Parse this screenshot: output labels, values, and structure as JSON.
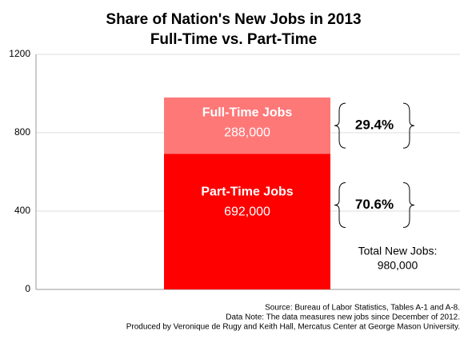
{
  "chart_data": {
    "type": "stacked_bar",
    "title": "Share of Nation's New Jobs in 2013",
    "subtitle": "Full-Time vs. Part-Time",
    "categories": [
      null
    ],
    "series": [
      {
        "name": "Part-Time Jobs",
        "color": "#ff0000",
        "values": [
          692
        ],
        "value_labels": [
          "692,000"
        ],
        "share_labels": [
          "70.6%"
        ]
      },
      {
        "name": "Full-Time Jobs",
        "color": "#ff7878",
        "values": [
          288
        ],
        "value_labels": [
          "288,000"
        ],
        "share_labels": [
          "29.4%"
        ]
      }
    ],
    "ylim": [
      0,
      1200
    ],
    "yticks": [
      0,
      400,
      800,
      1200
    ],
    "grid": true,
    "annotations": [
      "Total New Jobs:",
      "980,000"
    ],
    "source": [
      "Source: Bureau of Labor Statistics, Tables A-1 and A-8.",
      "Data Note: The data measures new jobs since December of 2012.",
      "Produced by Veronique de Rugy and Keith Hall, Mercatus Center at George Mason University."
    ]
  }
}
